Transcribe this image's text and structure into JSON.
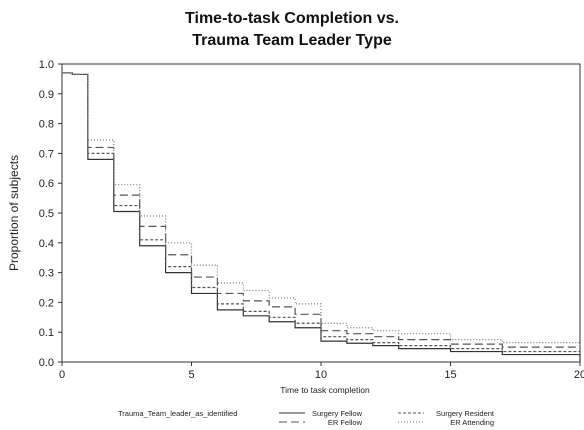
{
  "chart_data": {
    "type": "line",
    "title_line1": "Time-to-task Completion vs.",
    "title_line2": "Trauma Team Leader Type",
    "xlabel": "Time to task completion",
    "ylabel": "Proportion of subjects",
    "xlim": [
      0,
      20
    ],
    "ylim": [
      0,
      1
    ],
    "x_ticks": [
      "0",
      "5",
      "10",
      "15",
      "20"
    ],
    "y_ticks": [
      "0.0",
      "0.1",
      "0.2",
      "0.3",
      "0.4",
      "0.5",
      "0.6",
      "0.7",
      "0.8",
      "0.9",
      "1.0"
    ],
    "grid": false,
    "legend_title": "Trauma_Team_leader_as_identified",
    "series": [
      {
        "name": "Surgery Fellow",
        "style": "solid",
        "x": [
          0,
          0.4,
          1,
          2,
          3,
          4,
          5,
          6,
          7,
          8,
          9,
          10,
          11,
          12,
          13,
          15,
          17,
          20
        ],
        "y": [
          0.97,
          0.965,
          0.68,
          0.505,
          0.39,
          0.3,
          0.23,
          0.175,
          0.155,
          0.135,
          0.115,
          0.07,
          0.063,
          0.055,
          0.045,
          0.035,
          0.025,
          0.005
        ]
      },
      {
        "name": "Surgery Resident",
        "style": "shortdash",
        "x": [
          0,
          0.4,
          1,
          2,
          3,
          4,
          5,
          6,
          7,
          8,
          9,
          10,
          11,
          12,
          13,
          15,
          17,
          20
        ],
        "y": [
          0.97,
          0.965,
          0.7,
          0.525,
          0.41,
          0.32,
          0.25,
          0.195,
          0.17,
          0.15,
          0.13,
          0.085,
          0.075,
          0.065,
          0.055,
          0.045,
          0.035,
          0.02
        ]
      },
      {
        "name": "ER Fellow",
        "style": "longdash",
        "x": [
          0,
          0.4,
          1,
          2,
          3,
          4,
          5,
          6,
          7,
          8,
          9,
          10,
          11,
          12,
          13,
          15,
          17,
          20
        ],
        "y": [
          0.97,
          0.965,
          0.72,
          0.56,
          0.455,
          0.36,
          0.285,
          0.23,
          0.205,
          0.185,
          0.16,
          0.105,
          0.095,
          0.085,
          0.075,
          0.06,
          0.05,
          0.035
        ]
      },
      {
        "name": "ER Attending",
        "style": "dotted",
        "x": [
          0,
          0.4,
          1,
          2,
          3,
          4,
          5,
          6,
          7,
          8,
          9,
          10,
          11,
          12,
          13,
          15,
          17,
          20
        ],
        "y": [
          0.97,
          0.965,
          0.745,
          0.595,
          0.49,
          0.4,
          0.325,
          0.265,
          0.24,
          0.215,
          0.195,
          0.13,
          0.115,
          0.105,
          0.095,
          0.075,
          0.065,
          0.05
        ]
      }
    ]
  }
}
